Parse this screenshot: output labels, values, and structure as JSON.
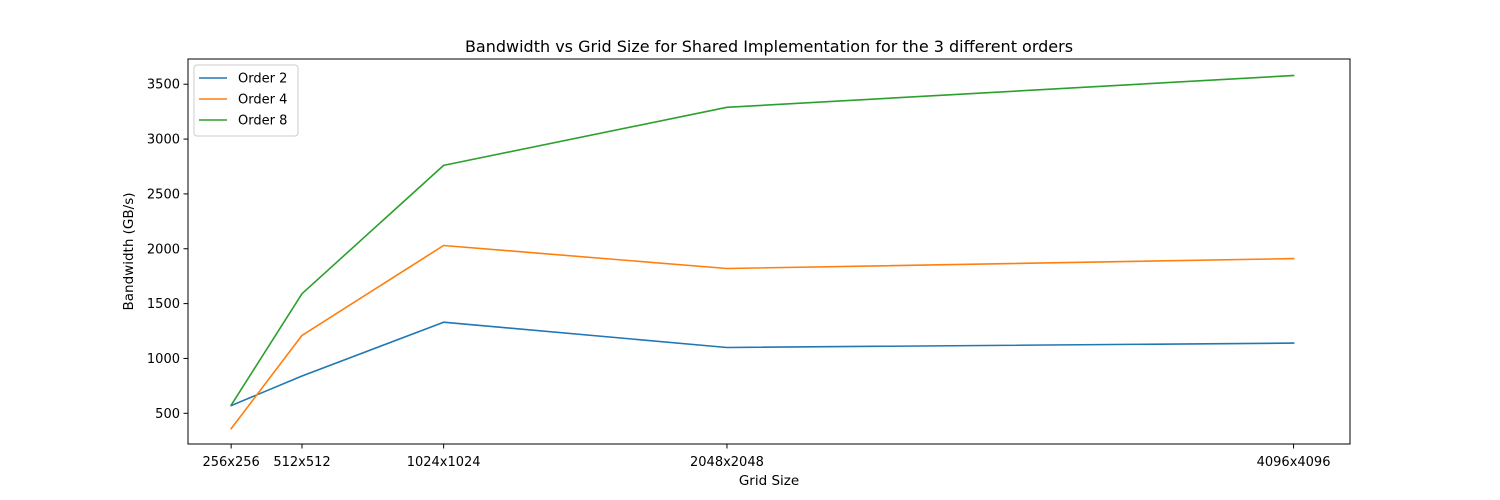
{
  "chart_data": {
    "type": "line",
    "title": "Bandwidth vs Grid Size for Shared Implementation for the 3 different orders",
    "xlabel": "Grid Size",
    "ylabel": "Bandwidth (GB/s)",
    "x": [
      256,
      512,
      1024,
      2048,
      4096
    ],
    "x_tick_labels": [
      "256x256",
      "512x512",
      "1024x1024",
      "2048x2048",
      "4096x4096"
    ],
    "xlim": [
      100,
      4300
    ],
    "ylim": [
      220,
      3730
    ],
    "y_ticks": [
      500,
      1000,
      1500,
      2000,
      2500,
      3000,
      3500
    ],
    "grid": false,
    "legend_position": "top-left",
    "series": [
      {
        "name": "Order 2",
        "color": "#1f77b4",
        "values": [
          570,
          840,
          1330,
          1100,
          1140
        ]
      },
      {
        "name": "Order 4",
        "color": "#ff7f0e",
        "values": [
          360,
          1210,
          2030,
          1820,
          1910
        ]
      },
      {
        "name": "Order 8",
        "color": "#2ca02c",
        "values": [
          575,
          1590,
          2760,
          3290,
          3580
        ]
      }
    ]
  }
}
